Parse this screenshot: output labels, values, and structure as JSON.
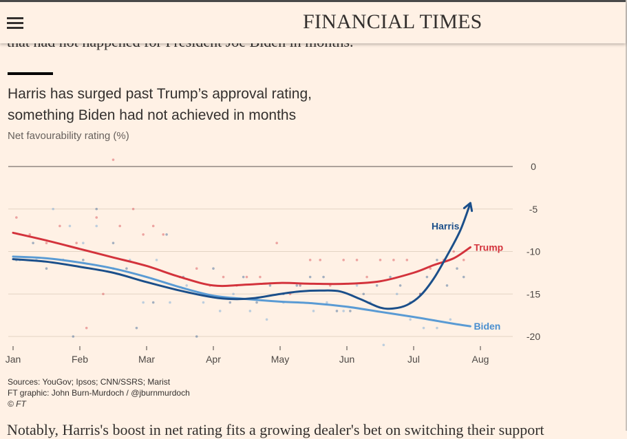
{
  "header": {
    "menu_icon": "hamburger-menu-icon",
    "masthead": "FINANCIAL TIMES"
  },
  "article": {
    "text_above": "that had not happened for President Joe Biden in months.",
    "text_below": "Notably, Harris's boost in net rating fits a growing dealer's bet on switching their support"
  },
  "chart_data": {
    "type": "line",
    "title": "Harris has surged past Trump’s approval rating, something Biden had not achieved in months",
    "title_lines": [
      "Harris has surged past Trump’s approval rating,",
      "something Biden had not achieved in months"
    ],
    "ylabel": "Net favourability rating (%)",
    "xlabel": "",
    "ylim": [
      -20,
      0
    ],
    "yticks": [
      0,
      -5,
      -10,
      -15,
      -20
    ],
    "ytick_labels": [
      "0",
      "-5",
      "-10",
      "-15",
      "-20"
    ],
    "xlim": [
      1,
      8.5
    ],
    "xticks": [
      1,
      2,
      3,
      4,
      5,
      6,
      7,
      8
    ],
    "xtick_labels": [
      "Jan",
      "Feb",
      "Mar",
      "Apr",
      "May",
      "Jun",
      "Jul",
      "Aug"
    ],
    "grid": true,
    "series": [
      {
        "name": "Trump",
        "color": "#d3333c",
        "label_color": "#d3333c",
        "x": [
          1.0,
          1.5,
          2.0,
          2.5,
          3.0,
          3.5,
          4.0,
          4.5,
          5.0,
          5.5,
          6.0,
          6.5,
          7.0,
          7.3,
          7.6,
          7.85
        ],
        "y": [
          -7.8,
          -8.7,
          -9.7,
          -10.7,
          -11.7,
          -13.0,
          -14.0,
          -13.9,
          -13.7,
          -13.8,
          -13.8,
          -13.5,
          -12.5,
          -11.6,
          -10.8,
          -9.5
        ],
        "points_x": [
          1.05,
          1.25,
          1.5,
          1.7,
          1.95,
          2.1,
          2.25,
          2.35,
          2.5,
          2.6,
          2.8,
          2.95,
          3.1,
          3.25,
          3.5,
          3.75,
          3.95,
          4.15,
          4.35,
          4.5,
          4.7,
          4.95,
          5.15,
          5.3,
          5.45,
          5.6,
          5.75,
          5.95,
          6.15,
          6.3,
          6.5,
          6.7,
          6.9,
          7.1,
          7.25,
          7.45,
          7.6,
          7.75
        ],
        "points_y": [
          -6,
          -8,
          -9,
          -7,
          -9,
          -19,
          -6,
          -15,
          0.8,
          -7,
          -5,
          -8,
          -7,
          -8,
          -13,
          -12,
          -14,
          -13,
          -14,
          -13,
          -13,
          -9,
          -15,
          -14,
          -11,
          -11,
          -14,
          -11,
          -11,
          -13,
          -11,
          -11,
          -11,
          -15,
          -12,
          -11,
          -10,
          -11
        ]
      },
      {
        "name": "Harris",
        "color": "#1b4f8a",
        "label_color": "#1b4f8a",
        "arrow": true,
        "x": [
          1.0,
          1.5,
          2.0,
          2.5,
          3.0,
          3.5,
          4.0,
          4.3,
          4.6,
          5.0,
          5.3,
          5.6,
          5.9,
          6.2,
          6.5,
          6.7,
          6.9,
          7.1,
          7.3,
          7.5,
          7.7,
          7.85
        ],
        "y": [
          -10.9,
          -11.2,
          -11.8,
          -12.5,
          -13.6,
          -14.6,
          -15.4,
          -15.6,
          -15.5,
          -15.0,
          -14.7,
          -14.6,
          -14.7,
          -15.6,
          -16.6,
          -16.7,
          -16.3,
          -15.2,
          -13.2,
          -10.5,
          -7.5,
          -4.3
        ],
        "points_x": [
          1.05,
          1.3,
          1.5,
          1.75,
          1.9,
          2.05,
          2.25,
          2.5,
          2.7,
          2.85,
          3.1,
          3.3,
          3.55,
          3.75,
          4.0,
          4.25,
          4.45,
          4.65,
          4.85,
          5.05,
          5.25,
          5.45,
          5.65,
          5.85,
          6.05,
          6.25,
          6.45,
          6.65,
          6.8,
          6.95,
          7.1,
          7.2,
          7.35,
          7.5,
          7.65,
          7.75
        ],
        "points_y": [
          -11,
          -9,
          -12,
          -11,
          -20,
          -11,
          -5,
          -9,
          -12,
          -19,
          -16,
          -8,
          -13,
          -20,
          -12,
          -16,
          -13,
          -16,
          -14,
          -15,
          -14,
          -13,
          -13,
          -17,
          -17,
          -15,
          -14,
          -13,
          -14,
          -16,
          -15,
          -13,
          -11,
          -14,
          -12,
          -13
        ]
      },
      {
        "name": "Biden",
        "color": "#5a9bd4",
        "label_color": "#4a8fd0",
        "x": [
          1.0,
          1.5,
          2.0,
          2.5,
          3.0,
          3.5,
          4.0,
          4.5,
          5.0,
          5.5,
          6.0,
          6.5,
          7.0,
          7.3,
          7.6,
          7.85
        ],
        "y": [
          -10.6,
          -10.8,
          -11.3,
          -12.0,
          -13.0,
          -14.2,
          -15.2,
          -15.6,
          -15.9,
          -16.1,
          -16.5,
          -17.1,
          -17.7,
          -18.1,
          -18.5,
          -18.8
        ],
        "points_x": [
          1.1,
          1.35,
          1.6,
          1.85,
          2.05,
          2.25,
          2.5,
          2.75,
          2.95,
          3.15,
          3.35,
          3.6,
          3.85,
          4.1,
          4.3,
          4.55,
          4.8,
          5.05,
          5.3,
          5.5,
          5.7,
          5.95,
          6.15,
          6.35,
          6.55,
          6.75,
          6.95,
          7.15,
          7.35,
          7.55
        ],
        "points_y": [
          -11,
          -11,
          -5,
          -7,
          -9,
          -7,
          -12,
          -11,
          -16,
          -11,
          -16,
          -14,
          -16,
          -17,
          -15,
          -17,
          -18,
          -16,
          -14,
          -17,
          -16,
          -17,
          -14,
          -16,
          -21,
          -15,
          -18,
          -19,
          -19,
          -18
        ]
      }
    ]
  },
  "footer": {
    "sources": "Sources: YouGov; Ipsos; CNN/SSRS; Marist",
    "credit": "FT graphic: John Burn-Murdoch / @jburnmurdoch",
    "copyright": "© FT"
  }
}
